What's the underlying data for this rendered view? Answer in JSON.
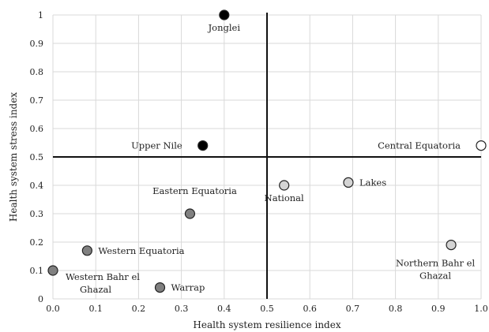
{
  "chart_data": {
    "type": "scatter",
    "title": "",
    "xlabel": "Health system resilience index",
    "ylabel": "Health system stress index",
    "xlim": [
      0,
      1
    ],
    "ylim": [
      0,
      1
    ],
    "x_ticks": [
      "0.0",
      "0.1",
      "0.2",
      "0.3",
      "0.4",
      "0.5",
      "0.6",
      "0.7",
      "0.8",
      "0.9",
      "1.0"
    ],
    "y_ticks": [
      "0",
      "0.1",
      "0.2",
      "0.3",
      "0.4",
      "0.5",
      "0.6",
      "0.7",
      "0.8",
      "0.9",
      "1"
    ],
    "grid": true,
    "reference_lines": {
      "x": 0.5,
      "y": 0.5
    },
    "colors": {
      "black": "#000000",
      "dark_gray": "#808080",
      "light_gray": "#d4d4d4",
      "white": "#ffffff"
    },
    "points": [
      {
        "label": "Jonglei",
        "x": 0.4,
        "y": 1.0,
        "fill": "black",
        "label_pos": "below"
      },
      {
        "label": "Upper Nile",
        "x": 0.35,
        "y": 0.54,
        "fill": "black",
        "label_pos": "left"
      },
      {
        "label": "Central Equatoria",
        "x": 1.0,
        "y": 0.54,
        "fill": "white",
        "label_pos": "left"
      },
      {
        "label": "Eastern Equatoria",
        "x": 0.32,
        "y": 0.3,
        "fill": "dark_gray",
        "label_pos": "above"
      },
      {
        "label": "National",
        "x": 0.54,
        "y": 0.4,
        "fill": "light_gray",
        "label_pos": "below"
      },
      {
        "label": "Lakes",
        "x": 0.69,
        "y": 0.41,
        "fill": "light_gray",
        "label_pos": "right"
      },
      {
        "label": "Western Equatoria",
        "x": 0.08,
        "y": 0.17,
        "fill": "dark_gray",
        "label_pos": "right"
      },
      {
        "label": "Northern Bahr el Ghazal",
        "x": 0.93,
        "y": 0.19,
        "fill": "light_gray",
        "label_pos": "below-left"
      },
      {
        "label": "Western Bahr el Ghazal",
        "x": 0.0,
        "y": 0.1,
        "fill": "dark_gray",
        "label_pos": "below-right"
      },
      {
        "label": "Warrap",
        "x": 0.25,
        "y": 0.04,
        "fill": "dark_gray",
        "label_pos": "right"
      }
    ]
  }
}
